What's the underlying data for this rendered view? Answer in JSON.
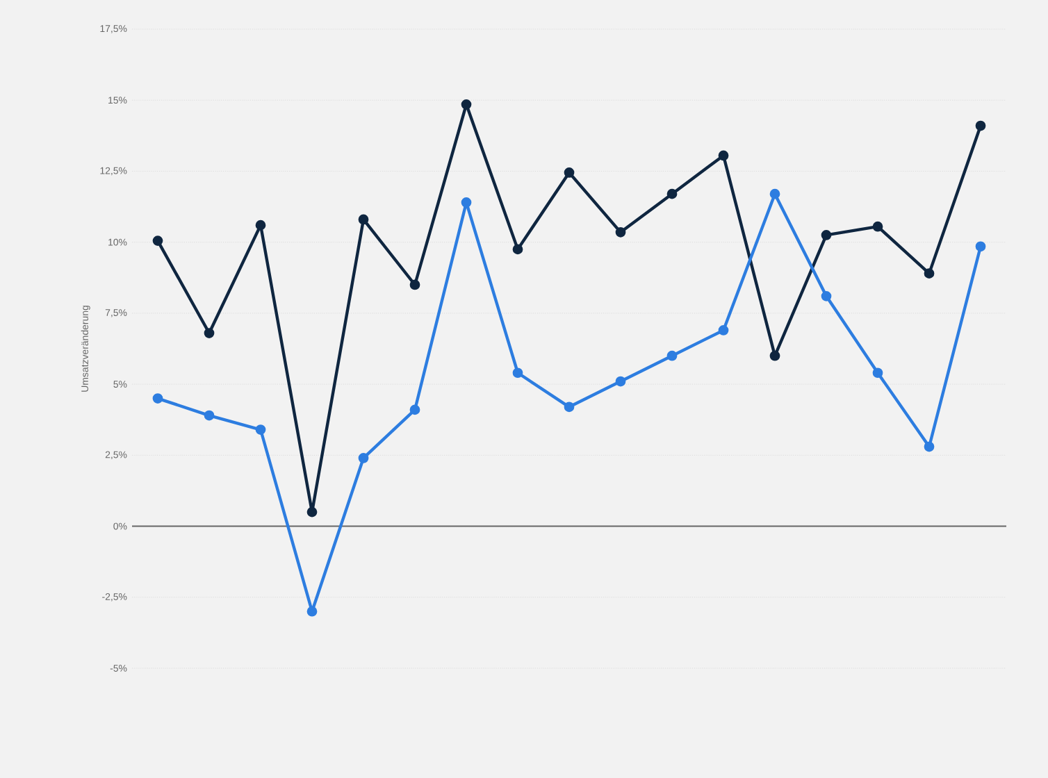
{
  "chart_data": {
    "type": "line",
    "ylabel": "Umsatzveränderung",
    "categories": [
      null,
      null,
      null,
      null,
      null,
      null,
      null,
      null,
      null,
      null,
      null,
      null,
      null,
      null,
      null,
      null,
      null
    ],
    "series": [
      {
        "color": "#0f2640",
        "values": [
          10.05,
          6.8,
          10.6,
          0.5,
          10.8,
          8.5,
          14.85,
          9.75,
          12.45,
          10.35,
          11.7,
          13.05,
          6.0,
          10.25,
          10.55,
          8.9,
          14.1
        ]
      },
      {
        "color": "#2d7de0",
        "values": [
          4.5,
          3.9,
          3.4,
          -3.0,
          2.4,
          4.1,
          11.4,
          5.4,
          4.2,
          5.1,
          6.0,
          6.9,
          11.7,
          8.1,
          5.4,
          2.8,
          9.85
        ]
      }
    ],
    "ylim": [
      -5,
      17.5
    ],
    "yticks": [
      {
        "value": -5,
        "label": "-5%"
      },
      {
        "value": -2.5,
        "label": "-2,5%"
      },
      {
        "value": 0,
        "label": "0%"
      },
      {
        "value": 2.5,
        "label": "2,5%"
      },
      {
        "value": 5,
        "label": "5%"
      },
      {
        "value": 7.5,
        "label": "7,5%"
      },
      {
        "value": 10,
        "label": "10%"
      },
      {
        "value": 12.5,
        "label": "12,5%"
      },
      {
        "value": 15,
        "label": "15%"
      },
      {
        "value": 17.5,
        "label": "17,5%"
      }
    ],
    "ref_lines": [
      {
        "axis": "y",
        "value": 0,
        "color": "#666666"
      }
    ],
    "grid": "y",
    "marker": "circle",
    "line_style": "solid"
  }
}
